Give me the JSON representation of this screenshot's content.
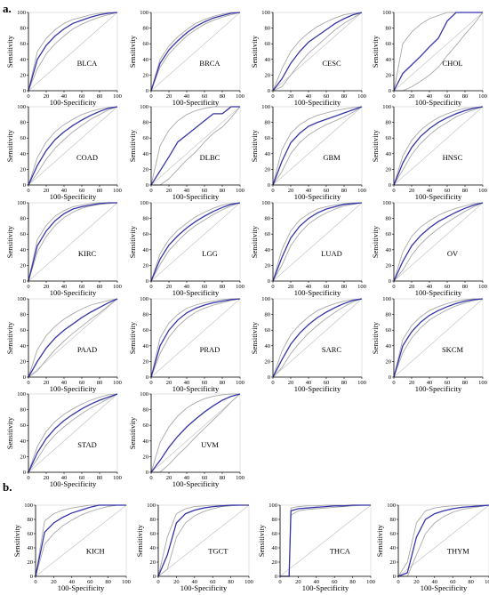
{
  "figure": {
    "section_a_label": "a.",
    "section_b_label": "b.",
    "common_xlabel": "100-Specificity",
    "common_ylabel": "Sensitivity",
    "ticks": [
      "0",
      "20",
      "40",
      "60",
      "80",
      "100"
    ],
    "colors": {
      "curve": "#3535a8",
      "ci": "#a8a8a8",
      "diagonal": "#c4c4c4",
      "axis": "#000000"
    }
  },
  "chart_data": [
    {
      "type": "line",
      "section": "a",
      "name": "BLCA",
      "xlabel": "100-Specificity",
      "ylabel": "Sensitivity",
      "xlim": [
        0,
        100
      ],
      "ylim": [
        0,
        100
      ],
      "x": [
        0,
        10,
        20,
        30,
        40,
        50,
        60,
        70,
        80,
        90,
        100
      ],
      "roc": [
        0,
        40,
        58,
        70,
        79,
        86,
        90,
        94,
        97,
        99,
        100
      ],
      "ci_upper": [
        0,
        50,
        67,
        78,
        86,
        91,
        94,
        97,
        99,
        100,
        100
      ],
      "ci_lower": [
        0,
        28,
        47,
        60,
        70,
        79,
        85,
        90,
        94,
        97,
        100
      ]
    },
    {
      "type": "line",
      "section": "a",
      "name": "BRCA",
      "xlabel": "100-Specificity",
      "ylabel": "Sensitivity",
      "xlim": [
        0,
        100
      ],
      "ylim": [
        0,
        100
      ],
      "x": [
        0,
        10,
        20,
        30,
        40,
        50,
        60,
        70,
        80,
        90,
        100
      ],
      "roc": [
        0,
        35,
        52,
        64,
        74,
        82,
        88,
        93,
        96,
        99,
        100
      ],
      "ci_upper": [
        0,
        40,
        57,
        69,
        78,
        86,
        91,
        95,
        98,
        100,
        100
      ],
      "ci_lower": [
        0,
        30,
        47,
        59,
        70,
        78,
        85,
        90,
        94,
        97,
        100
      ]
    },
    {
      "type": "line",
      "section": "a",
      "name": "CESC",
      "xlabel": "100-Specificity",
      "ylabel": "Sensitivity",
      "xlim": [
        0,
        100
      ],
      "ylim": [
        0,
        100
      ],
      "x": [
        0,
        10,
        20,
        30,
        40,
        50,
        60,
        70,
        80,
        90,
        100
      ],
      "roc": [
        0,
        15,
        35,
        50,
        62,
        70,
        78,
        86,
        92,
        97,
        100
      ],
      "ci_upper": [
        0,
        28,
        50,
        64,
        74,
        82,
        88,
        93,
        97,
        99,
        100
      ],
      "ci_lower": [
        0,
        5,
        20,
        35,
        48,
        58,
        68,
        78,
        86,
        93,
        100
      ]
    },
    {
      "type": "line",
      "section": "a",
      "name": "CHOL",
      "xlabel": "100-Specificity",
      "ylabel": "Sensitivity",
      "xlim": [
        0,
        100
      ],
      "ylim": [
        0,
        100
      ],
      "x": [
        0,
        10,
        20,
        30,
        40,
        50,
        60,
        70,
        80,
        90,
        100
      ],
      "roc": [
        0,
        22,
        33,
        44,
        56,
        67,
        89,
        100,
        100,
        100,
        100
      ],
      "ci_upper": [
        0,
        60,
        75,
        85,
        92,
        96,
        100,
        100,
        100,
        100,
        100
      ],
      "ci_lower": [
        0,
        0,
        5,
        12,
        20,
        30,
        45,
        58,
        72,
        85,
        100
      ]
    },
    {
      "type": "line",
      "section": "a",
      "name": "COAD",
      "xlabel": "100-Specificity",
      "ylabel": "Sensitivity",
      "xlim": [
        0,
        100
      ],
      "ylim": [
        0,
        100
      ],
      "x": [
        0,
        10,
        20,
        30,
        40,
        50,
        60,
        70,
        80,
        90,
        100
      ],
      "roc": [
        0,
        25,
        44,
        58,
        68,
        76,
        83,
        89,
        94,
        98,
        100
      ],
      "ci_upper": [
        0,
        35,
        55,
        68,
        77,
        84,
        90,
        94,
        97,
        99,
        100
      ],
      "ci_lower": [
        0,
        15,
        33,
        47,
        58,
        68,
        76,
        84,
        90,
        96,
        100
      ]
    },
    {
      "type": "line",
      "section": "a",
      "name": "DLBC",
      "xlabel": "100-Specificity",
      "ylabel": "Sensitivity",
      "xlim": [
        0,
        100
      ],
      "ylim": [
        0,
        100
      ],
      "x": [
        0,
        10,
        20,
        30,
        40,
        50,
        60,
        70,
        80,
        90,
        100
      ],
      "roc": [
        0,
        18,
        36,
        55,
        64,
        73,
        82,
        91,
        91,
        100,
        100
      ],
      "ci_upper": [
        0,
        50,
        70,
        82,
        90,
        95,
        98,
        100,
        100,
        100,
        100
      ],
      "ci_lower": [
        0,
        0,
        8,
        20,
        32,
        42,
        55,
        66,
        74,
        86,
        100
      ]
    },
    {
      "type": "line",
      "section": "a",
      "name": "GBM",
      "xlabel": "100-Specificity",
      "ylabel": "Sensitivity",
      "xlim": [
        0,
        100
      ],
      "ylim": [
        0,
        100
      ],
      "x": [
        0,
        10,
        20,
        30,
        40,
        50,
        60,
        70,
        80,
        90,
        100
      ],
      "roc": [
        0,
        30,
        54,
        66,
        75,
        80,
        84,
        88,
        92,
        96,
        100
      ],
      "ci_upper": [
        0,
        45,
        66,
        77,
        84,
        89,
        92,
        95,
        97,
        99,
        100
      ],
      "ci_lower": [
        0,
        17,
        40,
        54,
        64,
        71,
        77,
        82,
        87,
        93,
        100
      ]
    },
    {
      "type": "line",
      "section": "a",
      "name": "HNSC",
      "xlabel": "100-Specificity",
      "ylabel": "Sensitivity",
      "xlim": [
        0,
        100
      ],
      "ylim": [
        0,
        100
      ],
      "x": [
        0,
        10,
        20,
        30,
        40,
        50,
        60,
        70,
        80,
        90,
        100
      ],
      "roc": [
        0,
        28,
        48,
        62,
        72,
        80,
        86,
        91,
        95,
        98,
        100
      ],
      "ci_upper": [
        0,
        37,
        57,
        70,
        79,
        86,
        91,
        95,
        98,
        99,
        100
      ],
      "ci_lower": [
        0,
        19,
        39,
        53,
        64,
        73,
        80,
        87,
        92,
        96,
        100
      ]
    },
    {
      "type": "line",
      "section": "a",
      "name": "KIRC",
      "xlabel": "100-Specificity",
      "ylabel": "Sensitivity",
      "xlim": [
        0,
        100
      ],
      "ylim": [
        0,
        100
      ],
      "x": [
        0,
        10,
        20,
        30,
        40,
        50,
        60,
        70,
        80,
        90,
        100
      ],
      "roc": [
        0,
        45,
        64,
        77,
        86,
        92,
        95,
        97,
        99,
        100,
        100
      ],
      "ci_upper": [
        0,
        53,
        71,
        83,
        90,
        95,
        97,
        99,
        100,
        100,
        100
      ],
      "ci_lower": [
        0,
        37,
        57,
        71,
        81,
        88,
        93,
        96,
        98,
        99,
        100
      ]
    },
    {
      "type": "line",
      "section": "a",
      "name": "LGG",
      "xlabel": "100-Specificity",
      "ylabel": "Sensitivity",
      "xlim": [
        0,
        100
      ],
      "ylim": [
        0,
        100
      ],
      "x": [
        0,
        10,
        20,
        30,
        40,
        50,
        60,
        70,
        80,
        90,
        100
      ],
      "roc": [
        0,
        28,
        46,
        58,
        68,
        76,
        83,
        89,
        94,
        98,
        100
      ],
      "ci_upper": [
        0,
        35,
        53,
        65,
        74,
        82,
        88,
        93,
        97,
        99,
        100
      ],
      "ci_lower": [
        0,
        21,
        39,
        51,
        62,
        71,
        78,
        85,
        91,
        96,
        100
      ]
    },
    {
      "type": "line",
      "section": "a",
      "name": "LUAD",
      "xlabel": "100-Specificity",
      "ylabel": "Sensitivity",
      "xlim": [
        0,
        100
      ],
      "ylim": [
        0,
        100
      ],
      "x": [
        0,
        10,
        20,
        30,
        40,
        50,
        60,
        70,
        80,
        90,
        100
      ],
      "roc": [
        0,
        30,
        55,
        70,
        80,
        87,
        92,
        95,
        98,
        99,
        100
      ],
      "ci_upper": [
        0,
        40,
        64,
        78,
        86,
        92,
        95,
        97,
        99,
        100,
        100
      ],
      "ci_lower": [
        0,
        20,
        45,
        61,
        73,
        81,
        87,
        92,
        96,
        98,
        100
      ]
    },
    {
      "type": "line",
      "section": "a",
      "name": "OV",
      "xlabel": "100-Specificity",
      "ylabel": "Sensitivity",
      "xlim": [
        0,
        100
      ],
      "ylim": [
        0,
        100
      ],
      "x": [
        0,
        10,
        20,
        30,
        40,
        50,
        60,
        70,
        80,
        90,
        100
      ],
      "roc": [
        0,
        25,
        45,
        58,
        68,
        76,
        82,
        88,
        93,
        97,
        100
      ],
      "ci_upper": [
        0,
        37,
        57,
        69,
        77,
        84,
        89,
        93,
        96,
        99,
        100
      ],
      "ci_lower": [
        0,
        14,
        33,
        47,
        58,
        67,
        75,
        82,
        89,
        95,
        100
      ]
    },
    {
      "type": "line",
      "section": "a",
      "name": "PAAD",
      "xlabel": "100-Specificity",
      "ylabel": "Sensitivity",
      "xlim": [
        0,
        100
      ],
      "ylim": [
        0,
        100
      ],
      "x": [
        0,
        10,
        20,
        30,
        40,
        50,
        60,
        70,
        80,
        90,
        100
      ],
      "roc": [
        0,
        20,
        37,
        50,
        60,
        68,
        76,
        83,
        89,
        95,
        100
      ],
      "ci_upper": [
        0,
        35,
        53,
        65,
        74,
        81,
        87,
        92,
        95,
        98,
        100
      ],
      "ci_lower": [
        0,
        8,
        22,
        35,
        46,
        56,
        65,
        74,
        82,
        91,
        100
      ]
    },
    {
      "type": "line",
      "section": "a",
      "name": "PRAD",
      "xlabel": "100-Specificity",
      "ylabel": "Sensitivity",
      "xlim": [
        0,
        100
      ],
      "ylim": [
        0,
        100
      ],
      "x": [
        0,
        10,
        20,
        30,
        40,
        50,
        60,
        70,
        80,
        90,
        100
      ],
      "roc": [
        0,
        40,
        60,
        73,
        82,
        88,
        92,
        95,
        97,
        99,
        100
      ],
      "ci_upper": [
        0,
        50,
        69,
        80,
        88,
        92,
        95,
        97,
        99,
        100,
        100
      ],
      "ci_lower": [
        0,
        30,
        51,
        65,
        75,
        83,
        88,
        92,
        95,
        98,
        100
      ]
    },
    {
      "type": "line",
      "section": "a",
      "name": "SARC",
      "xlabel": "100-Specificity",
      "ylabel": "Sensitivity",
      "xlim": [
        0,
        100
      ],
      "ylim": [
        0,
        100
      ],
      "x": [
        0,
        10,
        20,
        30,
        40,
        50,
        60,
        70,
        80,
        90,
        100
      ],
      "roc": [
        0,
        22,
        42,
        56,
        67,
        76,
        83,
        89,
        94,
        98,
        100
      ],
      "ci_upper": [
        0,
        33,
        54,
        67,
        77,
        85,
        90,
        94,
        97,
        99,
        100
      ],
      "ci_lower": [
        0,
        12,
        30,
        44,
        56,
        66,
        75,
        83,
        90,
        96,
        100
      ]
    },
    {
      "type": "line",
      "section": "a",
      "name": "SKCM",
      "xlabel": "100-Specificity",
      "ylabel": "Sensitivity",
      "xlim": [
        0,
        100
      ],
      "ylim": [
        0,
        100
      ],
      "x": [
        0,
        10,
        20,
        30,
        40,
        50,
        60,
        70,
        80,
        90,
        100
      ],
      "roc": [
        0,
        40,
        58,
        70,
        79,
        85,
        90,
        94,
        97,
        99,
        100
      ],
      "ci_upper": [
        0,
        48,
        66,
        77,
        85,
        90,
        94,
        97,
        99,
        100,
        100
      ],
      "ci_lower": [
        0,
        31,
        50,
        63,
        73,
        80,
        86,
        91,
        95,
        98,
        100
      ]
    },
    {
      "type": "line",
      "section": "a",
      "name": "STAD",
      "xlabel": "100-Specificity",
      "ylabel": "Sensitivity",
      "xlim": [
        0,
        100
      ],
      "ylim": [
        0,
        100
      ],
      "x": [
        0,
        10,
        20,
        30,
        40,
        50,
        60,
        70,
        80,
        90,
        100
      ],
      "roc": [
        0,
        25,
        43,
        56,
        66,
        74,
        81,
        87,
        92,
        96,
        100
      ],
      "ci_upper": [
        0,
        33,
        52,
        65,
        74,
        81,
        87,
        92,
        96,
        99,
        100
      ],
      "ci_lower": [
        0,
        17,
        35,
        48,
        58,
        67,
        75,
        82,
        88,
        94,
        100
      ]
    },
    {
      "type": "line",
      "section": "a",
      "name": "UVM",
      "xlabel": "100-Specificity",
      "ylabel": "Sensitivity",
      "xlim": [
        0,
        100
      ],
      "ylim": [
        0,
        100
      ],
      "x": [
        0,
        10,
        20,
        30,
        40,
        50,
        60,
        70,
        80,
        90,
        100
      ],
      "roc": [
        0,
        15,
        32,
        46,
        58,
        68,
        77,
        85,
        92,
        97,
        100
      ],
      "ci_upper": [
        0,
        38,
        58,
        72,
        82,
        89,
        94,
        97,
        99,
        100,
        100
      ],
      "ci_lower": [
        0,
        0,
        10,
        22,
        33,
        45,
        56,
        67,
        78,
        90,
        100
      ]
    },
    {
      "type": "line",
      "section": "b",
      "name": "KICH",
      "xlabel": "100-Specificity",
      "ylabel": "Sensitivity",
      "xlim": [
        0,
        100
      ],
      "ylim": [
        0,
        100
      ],
      "x": [
        0,
        10,
        20,
        30,
        40,
        50,
        60,
        70,
        80,
        90,
        100
      ],
      "roc": [
        0,
        62,
        75,
        83,
        89,
        93,
        97,
        100,
        100,
        100,
        100
      ],
      "ci_upper": [
        0,
        78,
        88,
        93,
        96,
        98,
        100,
        100,
        100,
        100,
        100
      ],
      "ci_lower": [
        0,
        45,
        60,
        71,
        79,
        86,
        91,
        95,
        98,
        100,
        100
      ]
    },
    {
      "type": "line",
      "section": "b",
      "name": "TGCT",
      "xlabel": "100-Specificity",
      "ylabel": "Sensitivity",
      "xlim": [
        0,
        100
      ],
      "ylim": [
        0,
        100
      ],
      "x": [
        0,
        10,
        20,
        30,
        40,
        50,
        60,
        70,
        80,
        90,
        100
      ],
      "roc": [
        0,
        30,
        75,
        88,
        93,
        96,
        98,
        99,
        100,
        100,
        100
      ],
      "ci_upper": [
        0,
        55,
        88,
        95,
        98,
        99,
        100,
        100,
        100,
        100,
        100
      ],
      "ci_lower": [
        0,
        10,
        55,
        75,
        85,
        91,
        95,
        98,
        99,
        100,
        100
      ]
    },
    {
      "type": "line",
      "section": "b",
      "name": "THCA",
      "xlabel": "100-Specificity",
      "ylabel": "Sensitivity",
      "xlim": [
        0,
        100
      ],
      "ylim": [
        0,
        100
      ],
      "x": [
        0,
        10,
        12,
        20,
        30,
        40,
        50,
        60,
        70,
        80,
        90,
        100
      ],
      "roc": [
        0,
        0,
        92,
        95,
        96,
        97,
        98,
        99,
        99,
        100,
        100,
        100
      ],
      "ci_upper": [
        0,
        0,
        96,
        98,
        99,
        99,
        100,
        100,
        100,
        100,
        100,
        100
      ],
      "ci_lower": [
        0,
        0,
        86,
        92,
        94,
        95,
        96,
        97,
        98,
        99,
        100,
        100
      ]
    },
    {
      "type": "line",
      "section": "b",
      "name": "THYM",
      "xlabel": "100-Specificity",
      "ylabel": "Sensitivity",
      "xlim": [
        0,
        100
      ],
      "ylim": [
        0,
        100
      ],
      "x": [
        0,
        10,
        20,
        30,
        40,
        50,
        60,
        70,
        80,
        90,
        100
      ],
      "roc": [
        0,
        5,
        55,
        80,
        88,
        92,
        95,
        97,
        98,
        99,
        100
      ],
      "ci_upper": [
        0,
        20,
        75,
        92,
        96,
        98,
        99,
        100,
        100,
        100,
        100
      ],
      "ci_lower": [
        0,
        0,
        30,
        60,
        75,
        84,
        90,
        94,
        96,
        98,
        100
      ]
    }
  ]
}
